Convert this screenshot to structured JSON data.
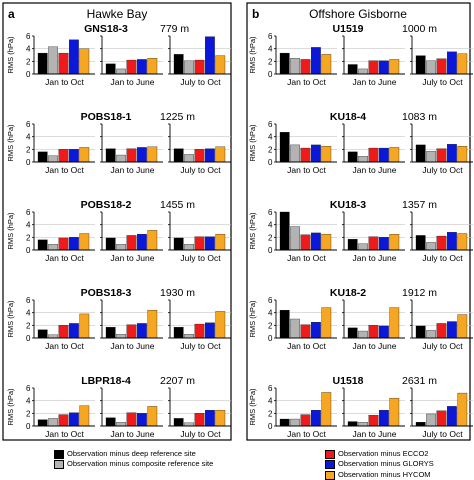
{
  "figure": {
    "panels": [
      {
        "letter": "a",
        "title": "Hawke Bay"
      },
      {
        "letter": "b",
        "title": "Offshore Gisborne"
      }
    ],
    "colors": {
      "deep": "#000000",
      "composite": "#b3b3b3",
      "ecco2": "#ef1b1b",
      "glorys": "#0b18d8",
      "hycom": "#f5a623"
    },
    "ylabel": "RMS (hPa)",
    "y_ticks": [
      "0",
      "2",
      "4",
      "6"
    ],
    "period_labels": [
      "Jan to Oct",
      "Jan to June",
      "July to Oct"
    ]
  },
  "legend": {
    "left": [
      {
        "key": "deep",
        "label": "Observation minus deep reference site"
      },
      {
        "key": "composite",
        "label": "Observation minus composite reference site"
      }
    ],
    "right": [
      {
        "key": "ecco2",
        "label": "Observation minus ECCO2"
      },
      {
        "key": "glorys",
        "label": "Observation minus GLORYS"
      },
      {
        "key": "hycom",
        "label": "Observation minus HYCOM"
      }
    ]
  },
  "chart_data": [
    {
      "type": "bar",
      "panel": "a",
      "site": "GNS18-3",
      "depth": "779 m",
      "ylim": [
        0,
        6
      ],
      "ylabel": "RMS (hPa)",
      "categories": [
        "Jan to Oct",
        "Jan to June",
        "July to Oct"
      ],
      "series": [
        {
          "name": "Observation minus deep reference site",
          "values": [
            3.3,
            1.6,
            3.1
          ]
        },
        {
          "name": "Observation minus composite reference site",
          "values": [
            4.3,
            0.8,
            2.1
          ]
        },
        {
          "name": "Observation minus ECCO2",
          "values": [
            3.3,
            2.2,
            2.2
          ]
        },
        {
          "name": "Observation minus GLORYS",
          "values": [
            5.4,
            2.3,
            5.9
          ]
        },
        {
          "name": "Observation minus HYCOM",
          "values": [
            4.0,
            2.5,
            2.9
          ]
        }
      ]
    },
    {
      "type": "bar",
      "panel": "a",
      "site": "POBS18-1",
      "depth": "1225 m",
      "ylim": [
        0,
        6
      ],
      "ylabel": "RMS (hPa)",
      "categories": [
        "Jan to Oct",
        "Jan to June",
        "July to Oct"
      ],
      "series": [
        {
          "name": "Observation minus deep reference site",
          "values": [
            1.6,
            2.1,
            2.1
          ]
        },
        {
          "name": "Observation minus composite reference site",
          "values": [
            1.0,
            1.1,
            1.2
          ]
        },
        {
          "name": "Observation minus ECCO2",
          "values": [
            2.0,
            2.1,
            2.0
          ]
        },
        {
          "name": "Observation minus GLORYS",
          "values": [
            2.0,
            2.3,
            2.1
          ]
        },
        {
          "name": "Observation minus HYCOM",
          "values": [
            2.3,
            2.4,
            2.4
          ]
        }
      ]
    },
    {
      "type": "bar",
      "panel": "a",
      "site": "POBS18-2",
      "depth": "1455 m",
      "ylim": [
        0,
        6
      ],
      "ylabel": "RMS (hPa)",
      "categories": [
        "Jan to Oct",
        "Jan to June",
        "July to Oct"
      ],
      "series": [
        {
          "name": "Observation minus deep reference site",
          "values": [
            1.6,
            1.9,
            1.9
          ]
        },
        {
          "name": "Observation minus composite reference site",
          "values": [
            0.9,
            0.9,
            0.9
          ]
        },
        {
          "name": "Observation minus ECCO2",
          "values": [
            1.9,
            2.3,
            2.1
          ]
        },
        {
          "name": "Observation minus GLORYS",
          "values": [
            2.0,
            2.5,
            2.1
          ]
        },
        {
          "name": "Observation minus HYCOM",
          "values": [
            2.6,
            3.1,
            2.5
          ]
        }
      ]
    },
    {
      "type": "bar",
      "panel": "a",
      "site": "POBS18-3",
      "depth": "1930 m",
      "ylim": [
        0,
        6
      ],
      "ylabel": "RMS (hPa)",
      "categories": [
        "Jan to Oct",
        "Jan to June",
        "July to Oct"
      ],
      "series": [
        {
          "name": "Observation minus deep reference site",
          "values": [
            1.3,
            1.7,
            1.7
          ]
        },
        {
          "name": "Observation minus composite reference site",
          "values": [
            0.5,
            0.6,
            0.6
          ]
        },
        {
          "name": "Observation minus ECCO2",
          "values": [
            2.0,
            2.1,
            2.2
          ]
        },
        {
          "name": "Observation minus GLORYS",
          "values": [
            2.3,
            2.3,
            2.4
          ]
        },
        {
          "name": "Observation minus HYCOM",
          "values": [
            3.8,
            4.4,
            4.2
          ]
        }
      ]
    },
    {
      "type": "bar",
      "panel": "a",
      "site": "LBPR18-4",
      "depth": "2207 m",
      "ylim": [
        0,
        6
      ],
      "ylabel": "RMS (hPa)",
      "categories": [
        "Jan to Oct",
        "Jan to June",
        "July to Oct"
      ],
      "series": [
        {
          "name": "Observation minus deep reference site",
          "values": [
            1.0,
            1.3,
            1.2
          ]
        },
        {
          "name": "Observation minus composite reference site",
          "values": [
            1.2,
            0.6,
            0.5
          ]
        },
        {
          "name": "Observation minus ECCO2",
          "values": [
            1.8,
            2.1,
            2.0
          ]
        },
        {
          "name": "Observation minus GLORYS",
          "values": [
            2.1,
            2.0,
            2.5
          ]
        },
        {
          "name": "Observation minus HYCOM",
          "values": [
            3.2,
            3.1,
            2.5
          ]
        }
      ]
    },
    {
      "type": "bar",
      "panel": "b",
      "site": "U1519",
      "depth": "1000 m",
      "ylim": [
        0,
        6
      ],
      "ylabel": "RMS (hPa)",
      "categories": [
        "Jan to Oct",
        "Jan to June",
        "July to Oct"
      ],
      "series": [
        {
          "name": "Observation minus deep reference site",
          "values": [
            3.3,
            1.5,
            2.9
          ]
        },
        {
          "name": "Observation minus composite reference site",
          "values": [
            2.5,
            0.8,
            2.1
          ]
        },
        {
          "name": "Observation minus ECCO2",
          "values": [
            2.3,
            2.1,
            2.4
          ]
        },
        {
          "name": "Observation minus GLORYS",
          "values": [
            4.2,
            2.1,
            3.5
          ]
        },
        {
          "name": "Observation minus HYCOM",
          "values": [
            3.1,
            2.3,
            3.2
          ]
        }
      ]
    },
    {
      "type": "bar",
      "panel": "b",
      "site": "KU18-4",
      "depth": "1083 m",
      "ylim": [
        0,
        6
      ],
      "ylabel": "RMS (hPa)",
      "categories": [
        "Jan to Oct",
        "Jan to June",
        "July to Oct"
      ],
      "series": [
        {
          "name": "Observation minus deep reference site",
          "values": [
            4.7,
            1.6,
            2.7
          ]
        },
        {
          "name": "Observation minus composite reference site",
          "values": [
            2.7,
            0.9,
            1.7
          ]
        },
        {
          "name": "Observation minus ECCO2",
          "values": [
            2.2,
            2.2,
            2.1
          ]
        },
        {
          "name": "Observation minus GLORYS",
          "values": [
            2.7,
            2.2,
            2.8
          ]
        },
        {
          "name": "Observation minus HYCOM",
          "values": [
            2.5,
            2.3,
            2.5
          ]
        }
      ]
    },
    {
      "type": "bar",
      "panel": "b",
      "site": "KU18-3",
      "depth": "1357 m",
      "ylim": [
        0,
        6
      ],
      "ylabel": "RMS (hPa)",
      "categories": [
        "Jan to Oct",
        "Jan to June",
        "July to Oct"
      ],
      "series": [
        {
          "name": "Observation minus deep reference site",
          "values": [
            6.0,
            1.7,
            2.3
          ]
        },
        {
          "name": "Observation minus composite reference site",
          "values": [
            3.7,
            1.0,
            1.2
          ]
        },
        {
          "name": "Observation minus ECCO2",
          "values": [
            2.4,
            2.1,
            2.2
          ]
        },
        {
          "name": "Observation minus GLORYS",
          "values": [
            2.7,
            2.0,
            2.8
          ]
        },
        {
          "name": "Observation minus HYCOM",
          "values": [
            2.5,
            2.5,
            2.6
          ]
        }
      ]
    },
    {
      "type": "bar",
      "panel": "b",
      "site": "KU18-2",
      "depth": "1912 m",
      "ylim": [
        0,
        6
      ],
      "ylabel": "RMS (hPa)",
      "categories": [
        "Jan to Oct",
        "Jan to June",
        "July to Oct"
      ],
      "series": [
        {
          "name": "Observation minus deep reference site",
          "values": [
            4.4,
            1.6,
            1.9
          ]
        },
        {
          "name": "Observation minus composite reference site",
          "values": [
            3.0,
            1.1,
            1.2
          ]
        },
        {
          "name": "Observation minus ECCO2",
          "values": [
            2.1,
            2.0,
            2.3
          ]
        },
        {
          "name": "Observation minus GLORYS",
          "values": [
            2.5,
            1.9,
            2.6
          ]
        },
        {
          "name": "Observation minus HYCOM",
          "values": [
            4.8,
            4.8,
            3.7
          ]
        }
      ]
    },
    {
      "type": "bar",
      "panel": "b",
      "site": "U1518",
      "depth": "2631 m",
      "ylim": [
        0,
        6
      ],
      "ylabel": "RMS (hPa)",
      "categories": [
        "Jan to Oct",
        "Jan to June",
        "July to Oct"
      ],
      "series": [
        {
          "name": "Observation minus deep reference site",
          "values": [
            1.1,
            0.7,
            0.6
          ]
        },
        {
          "name": "Observation minus composite reference site",
          "values": [
            1.1,
            0.6,
            1.9
          ]
        },
        {
          "name": "Observation minus ECCO2",
          "values": [
            1.8,
            1.7,
            2.4
          ]
        },
        {
          "name": "Observation minus GLORYS",
          "values": [
            2.5,
            2.5,
            3.1
          ]
        },
        {
          "name": "Observation minus HYCOM",
          "values": [
            5.3,
            4.4,
            5.2
          ]
        }
      ]
    }
  ]
}
